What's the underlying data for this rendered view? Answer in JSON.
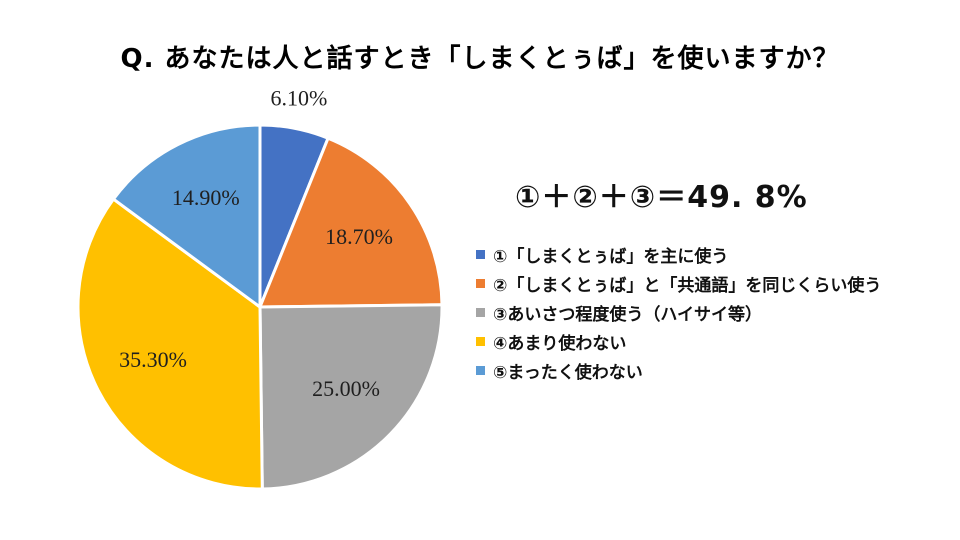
{
  "title": "Q. あなたは人と話すとき「しまくとぅば」を使いますか？",
  "summary": "①＋②＋③＝49. 8%",
  "chart_data": {
    "type": "pie",
    "title": "Q. あなたは人と話すとき「しまくとぅば」を使いますか？",
    "unit": "%",
    "start_angle_deg": 0,
    "direction": "clockwise",
    "legend_position": "right",
    "slices": [
      {
        "name": "①「しまくとぅば」を主に使う",
        "value": 6.1,
        "label": "6.10%",
        "color": "#4472c4"
      },
      {
        "name": "②「しまくとぅば」と「共通語」を同じくらい使う",
        "value": 18.7,
        "label": "18.70%",
        "color": "#ed7d31"
      },
      {
        "name": "③あいさつ程度使う（ハイサイ等）",
        "value": 25.0,
        "label": "25.00%",
        "color": "#a5a5a5"
      },
      {
        "name": "④あまり使わない",
        "value": 35.3,
        "label": "35.30%",
        "color": "#ffc000"
      },
      {
        "name": "⑤まったく使わない",
        "value": 14.9,
        "label": "14.90%",
        "color": "#5b9bd5"
      }
    ]
  }
}
